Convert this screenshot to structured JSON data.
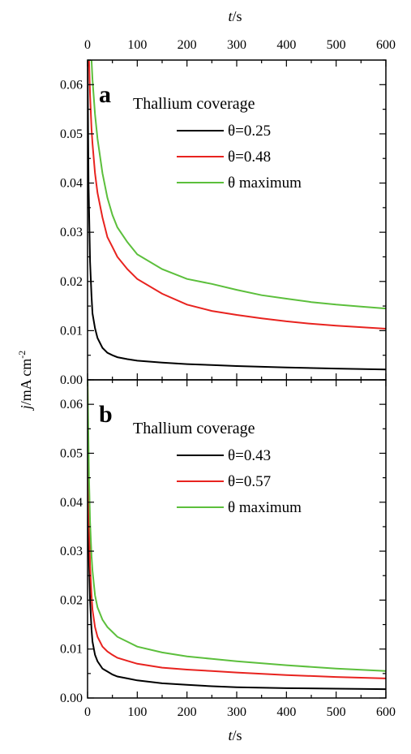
{
  "chart_data": {
    "type": "line",
    "shared": {
      "x_title_top": "t/s",
      "x_title_bottom": "t/s",
      "y_title": "j/mA cm-2",
      "xlim": [
        0,
        600
      ],
      "ylim": [
        0.0,
        0.065
      ],
      "x_ticks": [
        "0",
        "100",
        "200",
        "300",
        "400",
        "500",
        "600"
      ],
      "y_ticks": [
        "0.00",
        "0.01",
        "0.02",
        "0.03",
        "0.04",
        "0.05",
        "0.06"
      ]
    },
    "panels": [
      {
        "letter": "a",
        "legend_title": "Thallium coverage",
        "legend_position": "upper-right",
        "series": [
          {
            "name": "θ=0.25",
            "color": "#000000",
            "x": [
              0,
              2,
              5,
              8,
              10,
              15,
              20,
              30,
              40,
              50,
              60,
              80,
              100,
              150,
              200,
              250,
              300,
              400,
              500,
              600
            ],
            "y": [
              0.065,
              0.04,
              0.024,
              0.017,
              0.0135,
              0.0105,
              0.0085,
              0.0065,
              0.0055,
              0.005,
              0.0046,
              0.0042,
              0.0039,
              0.0035,
              0.0032,
              0.003,
              0.0028,
              0.0025,
              0.0023,
              0.0021
            ]
          },
          {
            "name": "θ=0.48",
            "color": "#e8231f",
            "x": [
              0,
              3,
              5,
              8,
              10,
              15,
              20,
              30,
              40,
              50,
              60,
              80,
              100,
              150,
              200,
              250,
              300,
              350,
              400,
              450,
              500,
              550,
              600
            ],
            "y": [
              0.065,
              0.065,
              0.058,
              0.051,
              0.048,
              0.042,
              0.038,
              0.033,
              0.029,
              0.027,
              0.025,
              0.0225,
              0.0205,
              0.0175,
              0.0153,
              0.014,
              0.0132,
              0.0125,
              0.0119,
              0.0114,
              0.011,
              0.0107,
              0.0104
            ]
          },
          {
            "name": "θ maximum",
            "color": "#5cbf3c",
            "x": [
              0,
              8,
              10,
              15,
              20,
              30,
              40,
              50,
              60,
              80,
              100,
              150,
              200,
              250,
              300,
              350,
              400,
              450,
              500,
              550,
              600
            ],
            "y": [
              0.065,
              0.065,
              0.061,
              0.054,
              0.049,
              0.042,
              0.037,
              0.0335,
              0.031,
              0.028,
              0.0255,
              0.0225,
              0.0205,
              0.0195,
              0.0183,
              0.0172,
              0.0165,
              0.0158,
              0.0153,
              0.0149,
              0.0145
            ]
          }
        ]
      },
      {
        "letter": "b",
        "legend_title": "Thallium coverage",
        "legend_position": "upper-right",
        "series": [
          {
            "name": "θ=0.43",
            "color": "#000000",
            "x": [
              0,
              2,
              5,
              8,
              10,
              15,
              20,
              30,
              40,
              50,
              60,
              80,
              100,
              150,
              200,
              250,
              300,
              400,
              500,
              600
            ],
            "y": [
              0.06,
              0.032,
              0.02,
              0.014,
              0.0115,
              0.0088,
              0.0075,
              0.006,
              0.0054,
              0.0048,
              0.0044,
              0.004,
              0.0036,
              0.003,
              0.0027,
              0.0024,
              0.0022,
              0.002,
              0.0019,
              0.0018
            ]
          },
          {
            "name": "θ=0.57",
            "color": "#e8231f",
            "x": [
              0,
              2,
              5,
              8,
              10,
              15,
              20,
              30,
              40,
              50,
              60,
              80,
              100,
              150,
              200,
              250,
              300,
              400,
              500,
              600
            ],
            "y": [
              0.065,
              0.04,
              0.027,
              0.021,
              0.018,
              0.0145,
              0.0125,
              0.0105,
              0.0095,
              0.0088,
              0.0082,
              0.0076,
              0.007,
              0.0062,
              0.0058,
              0.0055,
              0.0052,
              0.0047,
              0.0043,
              0.004
            ]
          },
          {
            "name": "θ maximum",
            "color": "#5cbf3c",
            "x": [
              0,
              3,
              5,
              8,
              10,
              15,
              20,
              30,
              40,
              50,
              60,
              80,
              100,
              150,
              200,
              250,
              300,
              400,
              500,
              600
            ],
            "y": [
              0.065,
              0.045,
              0.036,
              0.029,
              0.026,
              0.021,
              0.0185,
              0.016,
              0.0145,
              0.0135,
              0.0125,
              0.0115,
              0.0105,
              0.0093,
              0.0085,
              0.008,
              0.0075,
              0.0067,
              0.006,
              0.0055
            ]
          }
        ]
      }
    ]
  }
}
